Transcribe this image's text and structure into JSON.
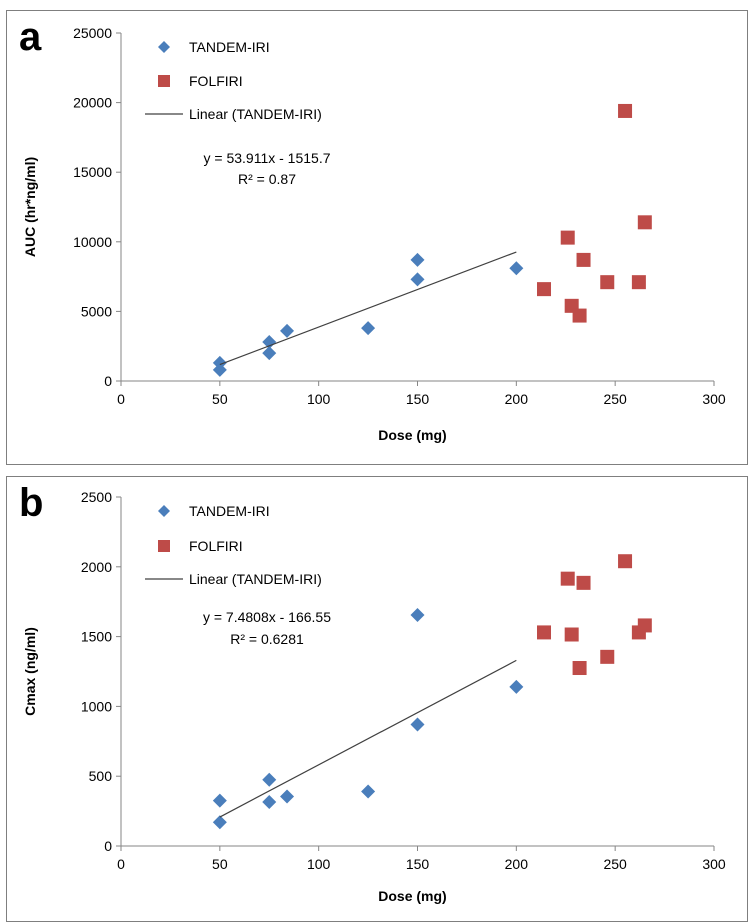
{
  "chart_data": [
    {
      "type": "scatter",
      "panel_label": "a",
      "xlabel": "Dose (mg)",
      "ylabel": "AUC (hr*ng/ml)",
      "xlim": [
        0,
        300
      ],
      "ylim": [
        0,
        25000
      ],
      "x_ticks": [
        0,
        50,
        100,
        150,
        200,
        250,
        300
      ],
      "y_ticks": [
        0,
        5000,
        10000,
        15000,
        20000,
        25000
      ],
      "grid": false,
      "legend_position": "top-left",
      "series": [
        {
          "name": "TANDEM-IRI",
          "marker": "diamond",
          "color": "#4a7ebb",
          "points": [
            [
              50,
              1300
            ],
            [
              50,
              800
            ],
            [
              75,
              2800
            ],
            [
              75,
              2000
            ],
            [
              84,
              3600
            ],
            [
              125,
              3800
            ],
            [
              150,
              8700
            ],
            [
              150,
              7300
            ],
            [
              200,
              8100
            ]
          ]
        },
        {
          "name": "FOLFIRI",
          "marker": "square",
          "color": "#be4b48",
          "points": [
            [
              214,
              6600
            ],
            [
              226,
              10300
            ],
            [
              228,
              5400
            ],
            [
              232,
              4700
            ],
            [
              234,
              8700
            ],
            [
              246,
              7100
            ],
            [
              255,
              19400
            ],
            [
              262,
              7100
            ],
            [
              265,
              11400
            ]
          ]
        },
        {
          "name": "Linear (TANDEM-IRI)",
          "type": "line",
          "color": "#404040",
          "x_range": [
            50,
            200
          ],
          "slope": 53.911,
          "intercept": -1515.7
        }
      ],
      "annotations": [
        "y = 53.911x - 1515.7",
        "R² = 0.87"
      ]
    },
    {
      "type": "scatter",
      "panel_label": "b",
      "xlabel": "Dose (mg)",
      "ylabel": "Cmax (ng/ml)",
      "xlim": [
        0,
        300
      ],
      "ylim": [
        0,
        2500
      ],
      "x_ticks": [
        0,
        50,
        100,
        150,
        200,
        250,
        300
      ],
      "y_ticks": [
        0,
        500,
        1000,
        1500,
        2000,
        2500
      ],
      "grid": false,
      "legend_position": "top-left",
      "series": [
        {
          "name": "TANDEM-IRI",
          "marker": "diamond",
          "color": "#4a7ebb",
          "points": [
            [
              50,
              325
            ],
            [
              50,
              170
            ],
            [
              75,
              475
            ],
            [
              75,
              315
            ],
            [
              84,
              355
            ],
            [
              125,
              390
            ],
            [
              150,
              1655
            ],
            [
              150,
              870
            ],
            [
              200,
              1140
            ]
          ]
        },
        {
          "name": "FOLFIRI",
          "marker": "square",
          "color": "#be4b48",
          "points": [
            [
              214,
              1530
            ],
            [
              226,
              1915
            ],
            [
              228,
              1515
            ],
            [
              232,
              1275
            ],
            [
              234,
              1885
            ],
            [
              246,
              1355
            ],
            [
              255,
              2040
            ],
            [
              262,
              1530
            ],
            [
              265,
              1580
            ]
          ]
        },
        {
          "name": "Linear (TANDEM-IRI)",
          "type": "line",
          "color": "#404040",
          "x_range": [
            50,
            200
          ],
          "slope": 7.4808,
          "intercept": -166.55
        }
      ],
      "annotations": [
        "y = 7.4808x - 166.55",
        "R² = 0.6281"
      ]
    }
  ]
}
